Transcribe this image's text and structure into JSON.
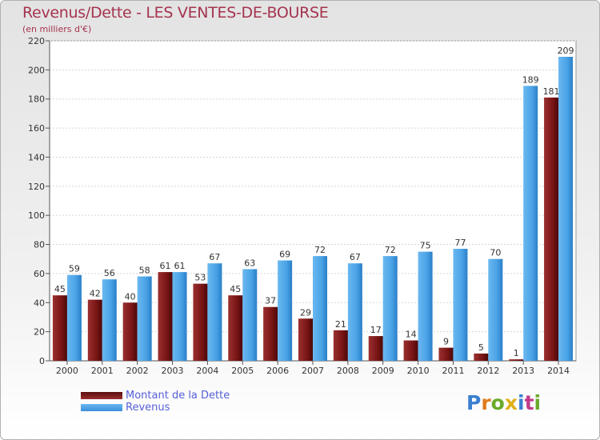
{
  "header": {
    "title": "Revenus/Dette - LES VENTES-DE-BOURSE",
    "subtitle": "(en milliers d'€)"
  },
  "legend": {
    "items": [
      {
        "label": "Montant de la Dette",
        "color": "#7a1515"
      },
      {
        "label": "Revenus",
        "color": "#4aa3e6"
      }
    ]
  },
  "logo": {
    "text": "Proxiti"
  },
  "colors": {
    "debt": "#7a1515",
    "revenue": "#4aa3e6",
    "title": "#a5344e",
    "legend_text": "#5560d8"
  },
  "chart_data": {
    "type": "bar",
    "categories": [
      "2000",
      "2001",
      "2002",
      "2003",
      "2004",
      "2005",
      "2006",
      "2007",
      "2008",
      "2009",
      "2010",
      "2011",
      "2012",
      "2013",
      "2014"
    ],
    "series": [
      {
        "name": "Montant de la Dette",
        "values": [
          45,
          42,
          40,
          61,
          53,
          45,
          37,
          29,
          21,
          17,
          14,
          9,
          5,
          1,
          181
        ]
      },
      {
        "name": "Revenus",
        "values": [
          59,
          56,
          58,
          61,
          67,
          63,
          69,
          72,
          67,
          72,
          75,
          77,
          70,
          189,
          209
        ]
      }
    ],
    "title": "Revenus/Dette - LES VENTES-DE-BOURSE",
    "subtitle": "(en milliers d'€)",
    "xlabel": "",
    "ylabel": "",
    "ylim": [
      0,
      220
    ],
    "yticks": [
      0,
      20,
      40,
      60,
      80,
      100,
      120,
      140,
      160,
      180,
      200,
      220
    ],
    "grid": true,
    "legend_position": "bottom-left"
  }
}
